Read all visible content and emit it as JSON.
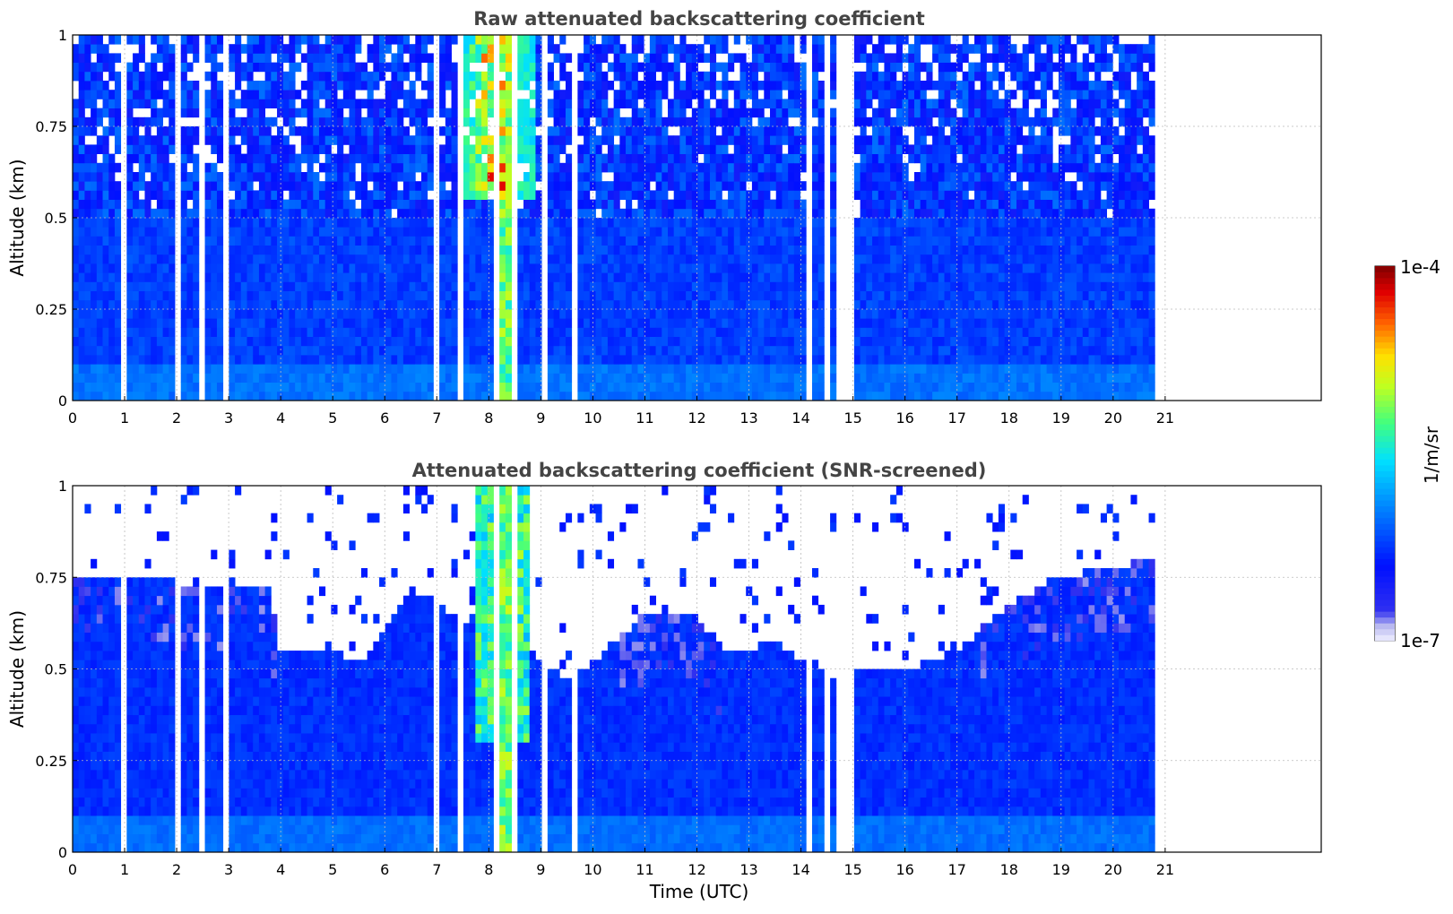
{
  "chart_data": [
    {
      "type": "heatmap",
      "title": "Raw attenuated backscattering coefficient",
      "xlabel": "",
      "ylabel": "Altitude (km)",
      "xlim": [
        0,
        24
      ],
      "ylim": [
        0,
        1
      ],
      "x_ticks": [
        "0",
        "1",
        "2",
        "3",
        "4",
        "5",
        "6",
        "7",
        "8",
        "9",
        "10",
        "11",
        "12",
        "13",
        "14",
        "15",
        "16",
        "17",
        "18",
        "19",
        "20",
        "21"
      ],
      "y_ticks": [
        "0",
        "0.25",
        "0.5",
        "0.75",
        "1"
      ],
      "data_extent_hours": [
        0,
        20.8
      ],
      "grid": true,
      "screened": false,
      "regime": {
        "near_surface_0_to_0.1km": "1e-6 to 2e-6",
        "low_layer_0.1_to_0.5km": "5e-7 to 1e-6",
        "upper_0.5_to_1km": "noisy, mostly 3e-7 to 1e-6 with gaps",
        "cloud_event_hours_7.5_to_8.8": "up to 1e-4 between 0.6 and 1 km"
      },
      "data_gap_hours": [
        1.0,
        2.0,
        2.5,
        3.0,
        7.0,
        7.5,
        8.2,
        8.5,
        9.1,
        9.6,
        14.1,
        14.2,
        14.5,
        14.7,
        14.8,
        15.0
      ]
    },
    {
      "type": "heatmap",
      "title": "Attenuated backscattering coefficient (SNR-screened)",
      "xlabel": "Time (UTC)",
      "ylabel": "Altitude (km)",
      "xlim": [
        0,
        24
      ],
      "ylim": [
        0,
        1
      ],
      "x_ticks": [
        "0",
        "1",
        "2",
        "3",
        "4",
        "5",
        "6",
        "7",
        "8",
        "9",
        "10",
        "11",
        "12",
        "13",
        "14",
        "15",
        "16",
        "17",
        "18",
        "19",
        "20",
        "21"
      ],
      "y_ticks": [
        "0",
        "0.25",
        "0.5",
        "0.75",
        "1"
      ],
      "data_extent_hours": [
        0,
        20.8
      ],
      "grid": true,
      "screened": true,
      "layer_top_profile": {
        "hours": [
          0,
          1,
          2,
          3,
          3.8,
          4,
          5,
          5.5,
          6,
          6.5,
          7,
          7.5,
          8,
          8.5,
          9,
          9.5,
          10,
          11,
          12,
          12.5,
          13,
          13.5,
          14,
          14.5,
          15,
          16,
          17,
          18,
          19,
          20,
          20.8
        ],
        "altitude_km": [
          0.75,
          0.75,
          0.74,
          0.72,
          0.72,
          0.55,
          0.54,
          0.52,
          0.6,
          0.72,
          0.68,
          0.62,
          0.7,
          0.62,
          0.52,
          0.48,
          0.52,
          0.65,
          0.65,
          0.55,
          0.55,
          0.58,
          0.52,
          0.48,
          0.5,
          0.5,
          0.55,
          0.68,
          0.75,
          0.78,
          0.8
        ]
      },
      "data_gap_hours": [
        1.0,
        2.0,
        2.5,
        3.0,
        7.0,
        7.5,
        8.2,
        8.5,
        9.1,
        9.6,
        14.1,
        14.2,
        14.5,
        14.7,
        14.8,
        15.0
      ]
    }
  ],
  "colorbar": {
    "label": "1/m/sr",
    "max_label": "1e-4",
    "min_label": "1e-7",
    "scale": "log",
    "colormap": "jet with white-lavender low end"
  }
}
